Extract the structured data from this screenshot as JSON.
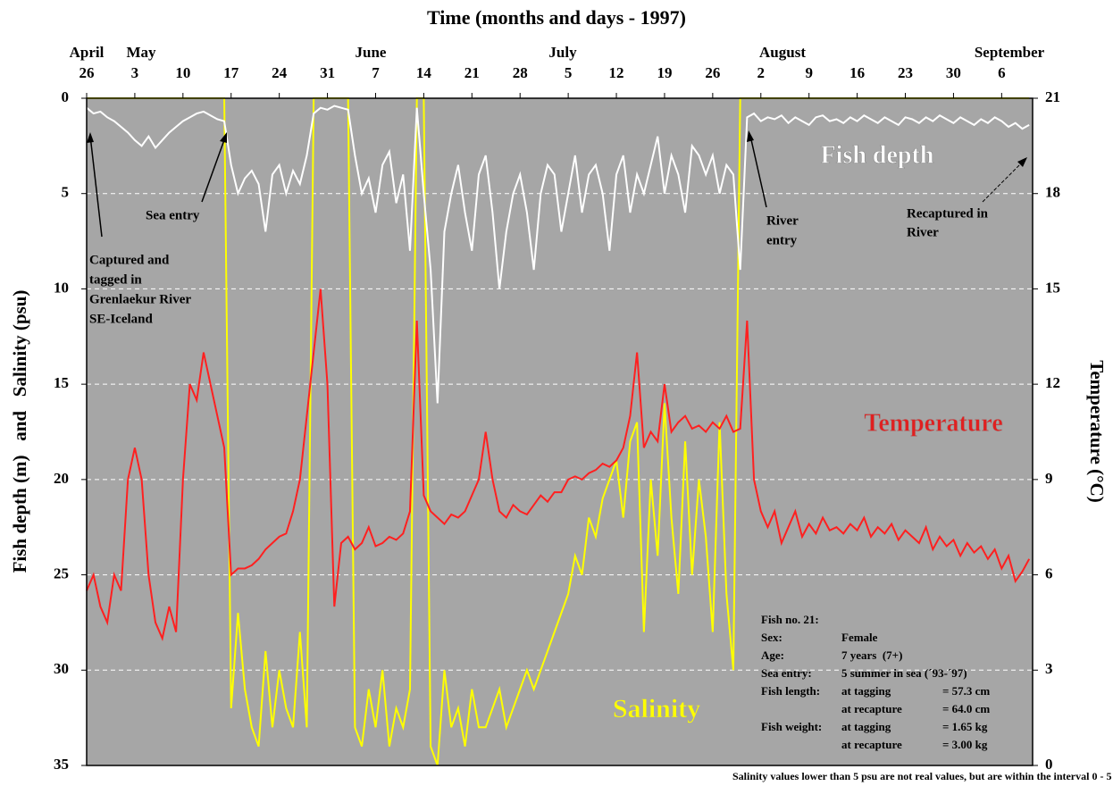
{
  "chart_data": {
    "type": "line",
    "title": "Time (months and days - 1997)",
    "months": [
      "April",
      "May",
      "June",
      "July",
      "August",
      "September"
    ],
    "y_label": "Fish depth (m)   and   Salinity (psu)",
    "y2_label": "Temperature (°C)",
    "xlim": [
      0,
      137.5
    ],
    "xticks": [
      {
        "value": 0,
        "label": "26"
      },
      {
        "value": 7,
        "label": "3"
      },
      {
        "value": 14,
        "label": "10"
      },
      {
        "value": 21,
        "label": "17"
      },
      {
        "value": 28,
        "label": "24"
      },
      {
        "value": 35,
        "label": "31"
      },
      {
        "value": 42,
        "label": "7"
      },
      {
        "value": 49,
        "label": "14"
      },
      {
        "value": 56,
        "label": "21"
      },
      {
        "value": 63,
        "label": "28"
      },
      {
        "value": 70,
        "label": "5"
      },
      {
        "value": 77,
        "label": "12"
      },
      {
        "value": 84,
        "label": "19"
      },
      {
        "value": 91,
        "label": "26"
      },
      {
        "value": 98,
        "label": "2"
      },
      {
        "value": 105,
        "label": "9"
      },
      {
        "value": 112,
        "label": "16"
      },
      {
        "value": 119,
        "label": "23"
      },
      {
        "value": 126,
        "label": "30"
      },
      {
        "value": 133,
        "label": "6"
      }
    ],
    "ylim": [
      35,
      0
    ],
    "yticks": [
      0,
      5,
      10,
      15,
      20,
      25,
      30,
      35
    ],
    "y2lim": [
      0,
      21
    ],
    "y2ticks": [
      0,
      3,
      6,
      9,
      12,
      15,
      18,
      21
    ],
    "grid": true,
    "background": "#a6a6a6",
    "x": [
      0,
      1,
      2,
      3,
      4,
      5,
      6,
      7,
      8,
      9,
      10,
      11,
      12,
      13,
      14,
      15,
      16,
      17,
      18,
      19,
      20,
      21,
      22,
      23,
      24,
      25,
      26,
      27,
      28,
      29,
      30,
      31,
      32,
      33,
      34,
      35,
      36,
      37,
      38,
      39,
      40,
      41,
      42,
      43,
      44,
      45,
      46,
      47,
      48,
      49,
      50,
      51,
      52,
      53,
      54,
      55,
      56,
      57,
      58,
      59,
      60,
      61,
      62,
      63,
      64,
      65,
      66,
      67,
      68,
      69,
      70,
      71,
      72,
      73,
      74,
      75,
      76,
      77,
      78,
      79,
      80,
      81,
      82,
      83,
      84,
      85,
      86,
      87,
      88,
      89,
      90,
      91,
      92,
      93,
      94,
      95,
      96,
      97,
      98,
      99,
      100,
      101,
      102,
      103,
      104,
      105,
      106,
      107,
      108,
      109,
      110,
      111,
      112,
      113,
      114,
      115,
      116,
      117,
      118,
      119,
      120,
      121,
      122,
      123,
      124,
      125,
      126,
      127,
      128,
      129,
      130,
      131,
      132,
      133,
      134,
      135,
      136,
      137
    ],
    "series": [
      {
        "name": "Salinity",
        "color": "#ffff00",
        "values": [
          0,
          0,
          0,
          0,
          0,
          0,
          0,
          0,
          0,
          0,
          0,
          0,
          0,
          0,
          0,
          0,
          0,
          0,
          0,
          0,
          0,
          32,
          27,
          31,
          33,
          34,
          29,
          33,
          30,
          32,
          33,
          28,
          33,
          0,
          0,
          0,
          0,
          0,
          0,
          33,
          34,
          31,
          33,
          30,
          34,
          32,
          33,
          31,
          0,
          0,
          34,
          35,
          30,
          33,
          32,
          34,
          31,
          33,
          33,
          32,
          31,
          33,
          32,
          31,
          30,
          31,
          30,
          29,
          28,
          27,
          26,
          24,
          25,
          22,
          23,
          21,
          20,
          19,
          22,
          18,
          17,
          28,
          20,
          24,
          16,
          22,
          26,
          18,
          25,
          20,
          23,
          28,
          17,
          26,
          30,
          0,
          0,
          0,
          0,
          0,
          0,
          0,
          0,
          0,
          0,
          0,
          0,
          0,
          0,
          0,
          0,
          0,
          0,
          0,
          0,
          0,
          0,
          0,
          0,
          0,
          0,
          0,
          0,
          0,
          0,
          0,
          0,
          0,
          0,
          0,
          0,
          0,
          0,
          0,
          0,
          0,
          0,
          0
        ]
      },
      {
        "name": "Temperature",
        "color": "#ff2020",
        "axis": "y2",
        "values": [
          5.5,
          6,
          5,
          4.5,
          6,
          5.5,
          9,
          10,
          9,
          6,
          4.5,
          4,
          5,
          4.2,
          9,
          12,
          11.5,
          13,
          12,
          11,
          10,
          6,
          6.2,
          6.2,
          6.3,
          6.5,
          6.8,
          7,
          7.2,
          7.3,
          8,
          9,
          11,
          13,
          15,
          12,
          5,
          7,
          7.2,
          6.8,
          7,
          7.5,
          6.9,
          7,
          7.2,
          7.1,
          7.3,
          8,
          14,
          8.5,
          8,
          7.8,
          7.6,
          7.9,
          7.8,
          8,
          8.5,
          9,
          10.5,
          9,
          8,
          7.8,
          8.2,
          8,
          7.9,
          8.2,
          8.5,
          8.3,
          8.6,
          8.6,
          9,
          9.1,
          9,
          9.2,
          9.3,
          9.5,
          9.4,
          9.6,
          10,
          11,
          13,
          10,
          10.5,
          10.2,
          12,
          10.5,
          10.8,
          11,
          10.6,
          10.7,
          10.5,
          10.8,
          10.6,
          11,
          10.5,
          10.6,
          14,
          9,
          8,
          7.5,
          8,
          7,
          7.5,
          8,
          7.2,
          7.6,
          7.3,
          7.8,
          7.4,
          7.5,
          7.3,
          7.6,
          7.4,
          7.8,
          7.2,
          7.5,
          7.3,
          7.6,
          7.1,
          7.4,
          7.2,
          7,
          7.5,
          6.8,
          7.2,
          6.9,
          7.1,
          6.6,
          7,
          6.7,
          6.9,
          6.5,
          6.8,
          6.2,
          6.6,
          5.8,
          6.1,
          6.5
        ]
      },
      {
        "name": "Fish depth",
        "color": "#ffffff",
        "values": [
          0.5,
          0.8,
          0.7,
          1,
          1.2,
          1.5,
          1.8,
          2.2,
          2.5,
          2,
          2.6,
          2.2,
          1.8,
          1.5,
          1.2,
          1,
          0.8,
          0.7,
          0.9,
          1.1,
          1.2,
          3.5,
          5,
          4.2,
          3.8,
          4.5,
          7,
          4,
          3.5,
          5,
          3.8,
          4.5,
          3,
          0.8,
          0.5,
          0.6,
          0.4,
          0.5,
          0.6,
          3,
          5,
          4.2,
          6,
          3.5,
          2.8,
          5.5,
          4,
          8,
          0.5,
          5,
          9,
          16,
          7,
          5,
          3.5,
          6,
          8,
          4,
          3,
          6,
          10,
          7,
          5,
          4,
          6,
          9,
          5,
          3.5,
          4,
          7,
          5,
          3,
          6,
          4,
          3.5,
          5,
          8,
          4,
          3,
          6,
          4,
          5,
          3.5,
          2,
          5,
          3,
          4,
          6,
          2.5,
          3,
          4,
          3,
          5,
          3.5,
          4,
          9,
          1,
          0.8,
          1.2,
          1,
          1.1,
          0.9,
          1.3,
          1,
          1.2,
          1.4,
          1,
          0.9,
          1.2,
          1.1,
          1.3,
          1,
          1.2,
          0.9,
          1.1,
          1.3,
          1,
          1.2,
          1.4,
          1,
          1.1,
          1.3,
          1,
          1.2,
          0.9,
          1.1,
          1.3,
          1,
          1.2,
          1.4,
          1.1,
          1.3,
          1,
          1.2,
          1.5,
          1.3,
          1.6,
          1.4
        ]
      }
    ],
    "annotations": {
      "captured": [
        "Captured and",
        "tagged in",
        "Grenlaekur River",
        "SE-Iceland"
      ],
      "sea_entry": "Sea entry",
      "river_entry": [
        "River",
        "entry"
      ],
      "recaptured": [
        "Recaptured in",
        "River"
      ],
      "footnote": "Salinity values lower than 5 psu are not real values, but are within the interval  0 - 5 psu"
    },
    "fish_info": {
      "title": "Fish no. 21:",
      "sex": [
        "Sex:",
        "Female"
      ],
      "age": [
        "Age:",
        "7 years  (7+)"
      ],
      "sea_entry": [
        "Sea entry:",
        "5 summer in sea (´93-´97)"
      ],
      "length": [
        "Fish length:",
        "at tagging",
        "= 57.3 cm",
        "at recapture",
        "= 64.0 cm"
      ],
      "weight": [
        "Fish weight:",
        "at tagging",
        "= 1.65 kg",
        "at recapture",
        "= 3.00 kg"
      ]
    }
  }
}
